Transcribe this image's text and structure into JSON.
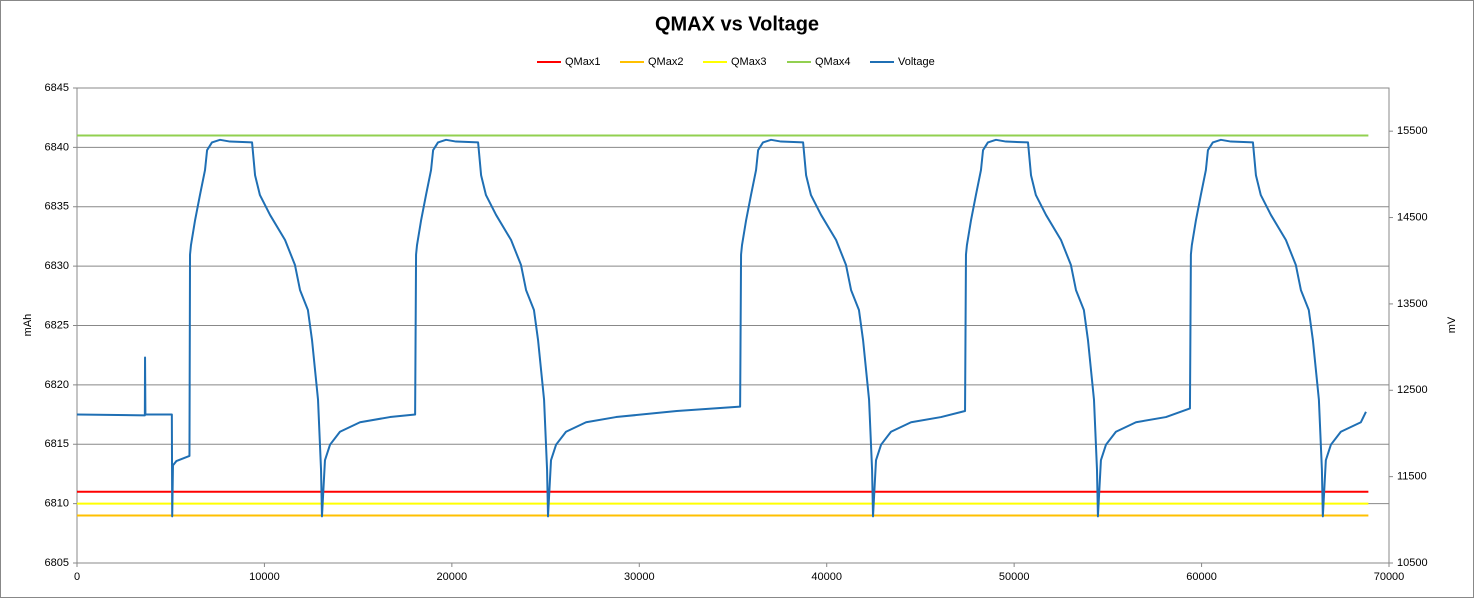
{
  "chart_data": {
    "type": "line",
    "title": "QMAX vs Voltage",
    "y_label": "mAh",
    "y2_label": "mV",
    "xlim": [
      0,
      70000
    ],
    "xticks": [
      0,
      10000,
      20000,
      30000,
      40000,
      50000,
      60000,
      70000
    ],
    "ylim": [
      6805,
      6845
    ],
    "yticks": [
      6805,
      6810,
      6815,
      6820,
      6825,
      6830,
      6835,
      6840,
      6845
    ],
    "y2lim": [
      10500,
      16000
    ],
    "y2ticks": [
      10500,
      11500,
      12500,
      13500,
      14500,
      15500
    ],
    "grid": true,
    "legend": "top",
    "series": [
      {
        "name": "QMax1",
        "color": "#ff0000",
        "x": [
          0,
          68900
        ],
        "values": [
          6811,
          6811
        ]
      },
      {
        "name": "QMax2",
        "color": "#ffc000",
        "x": [
          0,
          68900
        ],
        "values": [
          6809,
          6809
        ]
      },
      {
        "name": "QMax3",
        "color": "#ffff00",
        "x": [
          0,
          68900
        ],
        "values": [
          6810,
          6810
        ]
      },
      {
        "name": "QMax4",
        "color": "#92d050",
        "x": [
          0,
          68900
        ],
        "values": [
          6841,
          6841
        ]
      },
      {
        "name": "Voltage",
        "color": "#1f6fb4",
        "axis": "y2",
        "x": [
          0,
          3620,
          3630,
          3650,
          5060,
          5080,
          5120,
          5300,
          6000,
          6030,
          6080,
          6300,
          6560,
          6830,
          6940,
          7200,
          7630,
          8160,
          9340,
          9500,
          9760,
          10300,
          11100,
          11630,
          11900,
          12320,
          12540,
          12860,
          13020,
          13070,
          13230,
          13500,
          14030,
          15100,
          16700,
          18040,
          18090,
          18140,
          18360,
          18620,
          18890,
          19000,
          19260,
          19690,
          20220,
          21400,
          21560,
          21820,
          22360,
          23160,
          23690,
          23960,
          24380,
          24600,
          24920,
          25080,
          25130,
          25290,
          25560,
          26090,
          27160,
          28760,
          32000,
          35380,
          35430,
          35480,
          35700,
          35960,
          36230,
          36340,
          36600,
          37030,
          37560,
          38740,
          38900,
          39160,
          39700,
          40500,
          41030,
          41300,
          41720,
          41940,
          42260,
          42420,
          42470,
          42630,
          42900,
          43430,
          44500,
          46100,
          47380,
          47430,
          47480,
          47700,
          47960,
          48230,
          48340,
          48600,
          49030,
          49560,
          50740,
          50900,
          51160,
          51700,
          52500,
          53030,
          53300,
          53720,
          53940,
          54260,
          54420,
          54470,
          54630,
          54900,
          55430,
          56500,
          58100,
          59380,
          59430,
          59480,
          59700,
          59960,
          60230,
          60340,
          60600,
          61030,
          61560,
          62740,
          62900,
          63160,
          63700,
          64500,
          65030,
          65300,
          65720,
          65940,
          66260,
          66420,
          66470,
          66630,
          66900,
          67430,
          68500,
          68770
        ],
        "values": [
          12220,
          12210,
          12880,
          12220,
          12220,
          11040,
          11630,
          11680,
          11740,
          14070,
          14180,
          14470,
          14760,
          15050,
          15280,
          15370,
          15400,
          15380,
          15370,
          14990,
          14760,
          14530,
          14240,
          13950,
          13660,
          13430,
          13080,
          12390,
          11580,
          11040,
          11690,
          11870,
          12020,
          12130,
          12190,
          12220,
          14070,
          14180,
          14470,
          14760,
          15050,
          15280,
          15370,
          15400,
          15380,
          15370,
          14990,
          14760,
          14530,
          14240,
          13950,
          13660,
          13430,
          13080,
          12390,
          11580,
          11040,
          11690,
          11870,
          12020,
          12130,
          12190,
          12260,
          12310,
          14070,
          14180,
          14470,
          14760,
          15050,
          15280,
          15370,
          15400,
          15380,
          15370,
          14990,
          14760,
          14530,
          14240,
          13950,
          13660,
          13430,
          13080,
          12390,
          11580,
          11040,
          11690,
          11870,
          12020,
          12130,
          12190,
          12260,
          14070,
          14180,
          14470,
          14760,
          15050,
          15280,
          15370,
          15400,
          15380,
          15370,
          14990,
          14760,
          14530,
          14240,
          13950,
          13660,
          13430,
          13080,
          12390,
          11580,
          11040,
          11690,
          11870,
          12020,
          12130,
          12190,
          12290,
          14070,
          14180,
          14470,
          14760,
          15050,
          15280,
          15370,
          15400,
          15380,
          15370,
          14990,
          14760,
          14530,
          14240,
          13950,
          13660,
          13430,
          13080,
          12390,
          11580,
          11040,
          11690,
          11870,
          12020,
          12130,
          12250
        ]
      }
    ]
  }
}
